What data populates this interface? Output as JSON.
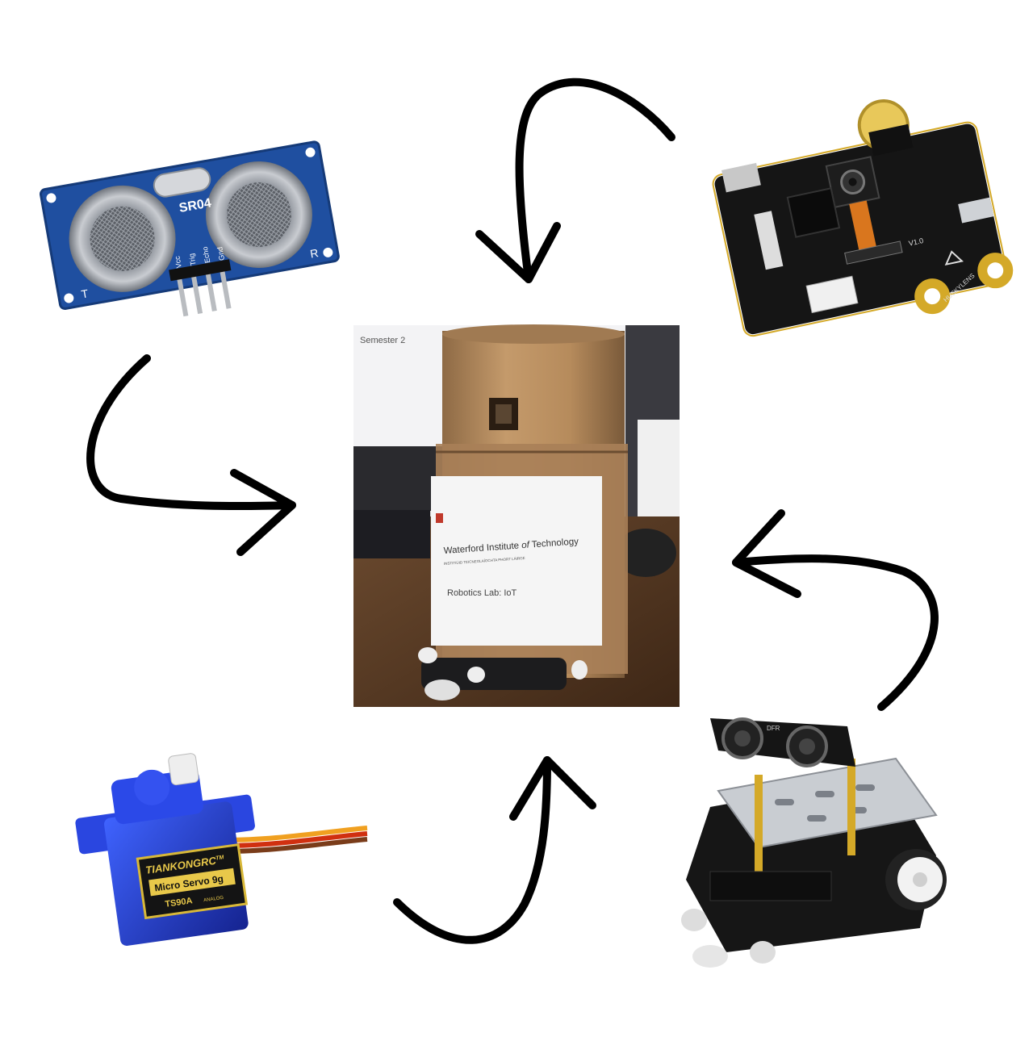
{
  "center_photo": {
    "screen_text": "Semester 2",
    "label_line1_pre": "Waterford Institute ",
    "label_line1_em": "of",
    "label_line1_post": " Technology",
    "label_line2": "INSTITIÚID TEICNEOLAÍOCHTA PHORT LÁIRGE",
    "label_line3": "Robotics Lab: IoT"
  },
  "ultrasonic_sensor": {
    "model": "SR04",
    "pins": [
      "Vcc",
      "Trig",
      "Echo",
      "Gnd"
    ],
    "left_mark": "T",
    "right_mark": "R"
  },
  "vision_sensor": {
    "brand": "HUSKYLENS",
    "version": "V1.0"
  },
  "servo": {
    "brand": "TIANKONGRC",
    "trademark": "TM",
    "name": "Micro Servo 9g",
    "model": "TS90A",
    "type": "ANALOG"
  },
  "robot_car": {
    "brand": "DFR"
  },
  "colors": {
    "arrow": "#000000",
    "sensor_blue": "#1f4fa0",
    "servo_blue": "#1c3fcf",
    "cardboard": "#b58b5e"
  }
}
